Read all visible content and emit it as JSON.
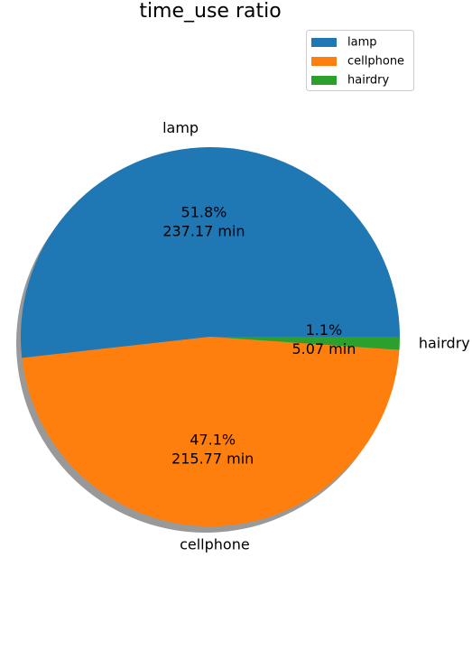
{
  "chart_data": {
    "type": "pie",
    "title": "time_use ratio",
    "categories": [
      "lamp",
      "cellphone",
      "hairdry"
    ],
    "values": [
      237.17,
      215.77,
      5.07
    ],
    "percent_labels": [
      "51.8%",
      "47.1%",
      "1.1%"
    ],
    "value_labels": [
      "237.17 min",
      "215.77 min",
      "5.07 min"
    ],
    "colors": [
      "#1f77b4",
      "#ff7f0e",
      "#2ca02c"
    ],
    "shadow": true,
    "legend": {
      "placement": "top-right",
      "entries": [
        "lamp",
        "cellphone",
        "hairdry"
      ]
    }
  }
}
